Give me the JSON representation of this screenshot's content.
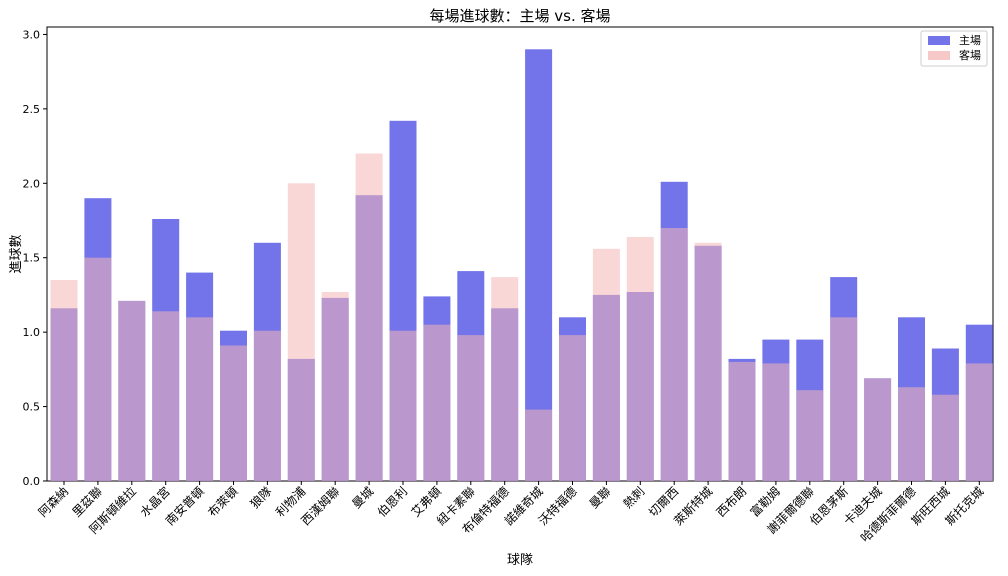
{
  "chart_data": {
    "type": "bar",
    "title": "每場進球數：主場 vs. 客場",
    "xlabel": "球隊",
    "ylabel": "進球數",
    "ylim": [
      0,
      3.05
    ],
    "yticks": [
      "0.0",
      "0.5",
      "1.0",
      "1.5",
      "2.0",
      "2.5",
      "3.0"
    ],
    "grid": false,
    "legend_position": "top-right",
    "categories": [
      "阿森納",
      "里茲聯",
      "阿斯頓維拉",
      "水晶宮",
      "南安普頓",
      "布萊頓",
      "狼隊",
      "利物浦",
      "西漢姆聯",
      "曼城",
      "伯恩利",
      "艾弗頓",
      "紐卡素聯",
      "布倫特福德",
      "諾維奇城",
      "沃特福德",
      "曼聯",
      "熱刺",
      "切爾西",
      "萊斯特城",
      "西布朗",
      "富勒姆",
      "謝菲爾德聯",
      "伯恩茅斯",
      "卡迪夫城",
      "哈德斯菲爾德",
      "斯旺西城",
      "斯托克城"
    ],
    "series": [
      {
        "name": "主場",
        "color": "#5b5be6",
        "values": [
          1.16,
          1.9,
          1.21,
          1.76,
          1.4,
          1.01,
          1.6,
          0.82,
          1.23,
          1.92,
          2.42,
          1.24,
          1.41,
          1.16,
          2.9,
          1.1,
          1.25,
          1.27,
          2.01,
          1.58,
          0.82,
          0.95,
          0.95,
          1.37,
          0.69,
          1.1,
          0.89,
          1.05
        ]
      },
      {
        "name": "客場",
        "color": "#f4b6b6",
        "values": [
          1.35,
          1.5,
          1.21,
          1.14,
          1.1,
          0.91,
          1.01,
          2.0,
          1.27,
          2.2,
          1.01,
          1.05,
          0.98,
          1.37,
          0.48,
          0.98,
          1.56,
          1.64,
          1.7,
          1.6,
          0.8,
          0.79,
          0.61,
          1.1,
          0.69,
          0.63,
          0.58,
          0.79
        ]
      }
    ]
  }
}
